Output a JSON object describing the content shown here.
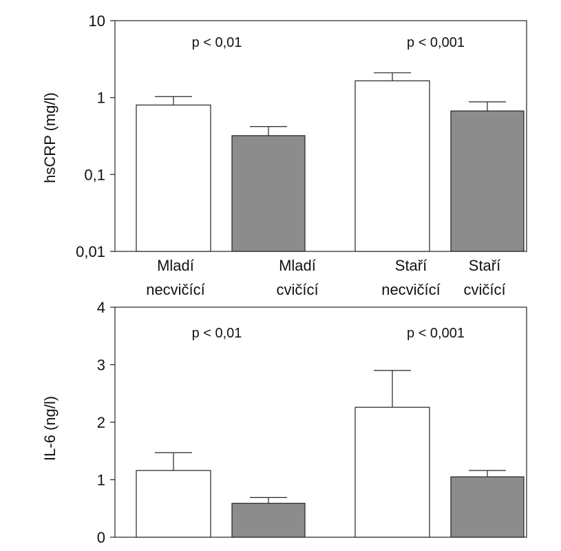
{
  "chart_data": [
    {
      "type": "bar",
      "scale": "log",
      "ylabel": "hsCRP (mg/l)",
      "ylim": [
        0.01,
        10
      ],
      "yticks": [
        "10",
        "1",
        "0,1",
        "0,01"
      ],
      "ytick_values": [
        10,
        1,
        0.1,
        0.01
      ],
      "categories": [
        {
          "line1": "Mladí",
          "line2": "necvičící"
        },
        {
          "line1": "Mladí",
          "line2": "cvičící"
        },
        {
          "line1": "Staří",
          "line2": "necvičící"
        },
        {
          "line1": "Staří",
          "line2": "cvičící"
        }
      ],
      "values": [
        0.8,
        0.32,
        1.65,
        0.67
      ],
      "error_upper": [
        1.03,
        0.42,
        2.1,
        0.88
      ],
      "bar_colors": [
        "#ffffff",
        "#8c8c8c",
        "#ffffff",
        "#8c8c8c"
      ],
      "annotations": [
        "p < 0,01",
        "p < 0,001"
      ],
      "grid": false
    },
    {
      "type": "bar",
      "scale": "linear",
      "ylabel": "IL-6 (ng/l)",
      "ylim": [
        0,
        4
      ],
      "yticks": [
        "4",
        "3",
        "2",
        "1",
        "0"
      ],
      "ytick_values": [
        4,
        3,
        2,
        1,
        0
      ],
      "values": [
        1.16,
        0.59,
        2.26,
        1.05
      ],
      "error_upper": [
        1.47,
        0.69,
        2.9,
        1.16
      ],
      "bar_colors": [
        "#ffffff",
        "#8c8c8c",
        "#ffffff",
        "#8c8c8c"
      ],
      "annotations": [
        "p < 0,01",
        "p < 0,001"
      ],
      "grid": false
    }
  ]
}
